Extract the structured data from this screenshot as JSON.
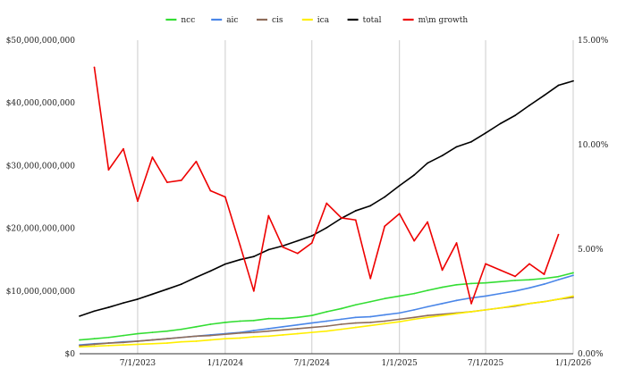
{
  "chart_data": {
    "type": "line",
    "title": "",
    "xlabel": "",
    "ylabel": "",
    "x": [
      "2023-03-01",
      "2023-04-01",
      "2023-05-01",
      "2023-06-01",
      "2023-07-01",
      "2023-08-01",
      "2023-09-01",
      "2023-10-01",
      "2023-11-01",
      "2023-12-01",
      "2024-01-01",
      "2024-02-01",
      "2024-03-01",
      "2024-04-01",
      "2024-05-01",
      "2024-06-01",
      "2024-07-01",
      "2024-08-01",
      "2024-09-01",
      "2024-10-01",
      "2024-11-01",
      "2024-12-01",
      "2025-01-01",
      "2025-02-01",
      "2025-03-01",
      "2025-04-01",
      "2025-05-01",
      "2025-06-01",
      "2025-07-01",
      "2025-08-01",
      "2025-09-01",
      "2025-10-01",
      "2025-11-01",
      "2025-12-01",
      "2026-01-01"
    ],
    "x_tick_labels": [
      "7/1/2023",
      "1/1/2024",
      "7/1/2024",
      "1/1/2025",
      "7/1/2025",
      "1/1/2026"
    ],
    "x_ticks": [
      "2023-07-01",
      "2024-01-01",
      "2024-07-01",
      "2025-01-01",
      "2025-07-01",
      "2026-01-01"
    ],
    "x_range": [
      "2023-03-01",
      "2026-01-01"
    ],
    "left_axis": {
      "ylim": [
        0,
        50000000000
      ],
      "tick_labels": [
        "$0",
        "$10,000,000,000",
        "$20,000,000,000",
        "$30,000,000,000",
        "$40,000,000,000",
        "$50,000,000,000"
      ],
      "tick_values": [
        0,
        10000000000,
        20000000000,
        30000000000,
        40000000000,
        50000000000
      ]
    },
    "right_axis": {
      "ylim": [
        0,
        15
      ],
      "unit": "%",
      "tick_labels": [
        "0.00%",
        "5.00%",
        "10.00%",
        "15.00%"
      ],
      "tick_values": [
        0,
        5,
        10,
        15
      ]
    },
    "grid": "vertical",
    "legend_position": "top",
    "series": [
      {
        "name": "ncc",
        "color": "#33dd33",
        "axis": "left",
        "values": [
          2200000000,
          2400000000,
          2600000000,
          2900000000,
          3200000000,
          3400000000,
          3600000000,
          3900000000,
          4300000000,
          4700000000,
          5000000000,
          5200000000,
          5300000000,
          5600000000,
          5600000000,
          5800000000,
          6100000000,
          6700000000,
          7200000000,
          7800000000,
          8300000000,
          8800000000,
          9200000000,
          9600000000,
          10100000000,
          10600000000,
          11000000000,
          11200000000,
          11300000000,
          11500000000,
          11700000000,
          11800000000,
          12000000000,
          12300000000,
          12900000000
        ]
      },
      {
        "name": "aic",
        "color": "#4a86e8",
        "axis": "left",
        "values": [
          1400000000,
          1600000000,
          1700000000,
          1900000000,
          2000000000,
          2200000000,
          2400000000,
          2600000000,
          2800000000,
          3000000000,
          3200000000,
          3400000000,
          3700000000,
          4000000000,
          4300000000,
          4600000000,
          4900000000,
          5200000000,
          5500000000,
          5800000000,
          5900000000,
          6200000000,
          6500000000,
          7000000000,
          7500000000,
          8000000000,
          8500000000,
          8900000000,
          9200000000,
          9600000000,
          10000000000,
          10500000000,
          11100000000,
          11800000000,
          12500000000
        ]
      },
      {
        "name": "cis",
        "color": "#8e6c5a",
        "axis": "left",
        "values": [
          1300000000,
          1500000000,
          1700000000,
          1800000000,
          2000000000,
          2200000000,
          2400000000,
          2600000000,
          2800000000,
          2900000000,
          3100000000,
          3300000000,
          3400000000,
          3600000000,
          3800000000,
          4000000000,
          4200000000,
          4400000000,
          4700000000,
          4900000000,
          5000000000,
          5200000000,
          5500000000,
          5800000000,
          6100000000,
          6300000000,
          6500000000,
          6700000000,
          7000000000,
          7300000000,
          7600000000,
          8000000000,
          8300000000,
          8700000000,
          9000000000
        ]
      },
      {
        "name": "ica",
        "color": "#ffee00",
        "axis": "left",
        "values": [
          1100000000,
          1200000000,
          1300000000,
          1400000000,
          1500000000,
          1600000000,
          1700000000,
          1900000000,
          2000000000,
          2200000000,
          2400000000,
          2500000000,
          2700000000,
          2800000000,
          3000000000,
          3200000000,
          3400000000,
          3600000000,
          3900000000,
          4200000000,
          4500000000,
          4800000000,
          5100000000,
          5500000000,
          5800000000,
          6100000000,
          6400000000,
          6700000000,
          7000000000,
          7300000000,
          7700000000,
          8000000000,
          8300000000,
          8700000000,
          9200000000
        ]
      },
      {
        "name": "total",
        "color": "#000000",
        "axis": "left",
        "values": [
          6000000000,
          6800000000,
          7400000000,
          8100000000,
          8700000000,
          9500000000,
          10300000000,
          11100000000,
          12200000000,
          13200000000,
          14300000000,
          15000000000,
          15500000000,
          16600000000,
          17200000000,
          18000000000,
          18800000000,
          20100000000,
          21600000000,
          22800000000,
          23600000000,
          25000000000,
          26800000000,
          28500000000,
          30400000000,
          31600000000,
          33000000000,
          33800000000,
          35200000000,
          36700000000,
          38000000000,
          39600000000,
          41200000000,
          42800000000,
          43500000000
        ]
      },
      {
        "name": "m\\m growth",
        "color": "#ee0000",
        "axis": "right",
        "values": [
          null,
          13.7,
          8.8,
          9.8,
          7.3,
          9.4,
          8.2,
          8.3,
          9.2,
          7.8,
          7.5,
          5.2,
          3.0,
          6.6,
          5.1,
          4.8,
          5.3,
          7.2,
          6.5,
          6.4,
          3.6,
          6.1,
          6.7,
          5.4,
          6.3,
          4.0,
          5.3,
          2.4,
          4.3,
          4.0,
          3.7,
          4.3,
          3.8,
          5.7,
          null
        ]
      }
    ]
  }
}
